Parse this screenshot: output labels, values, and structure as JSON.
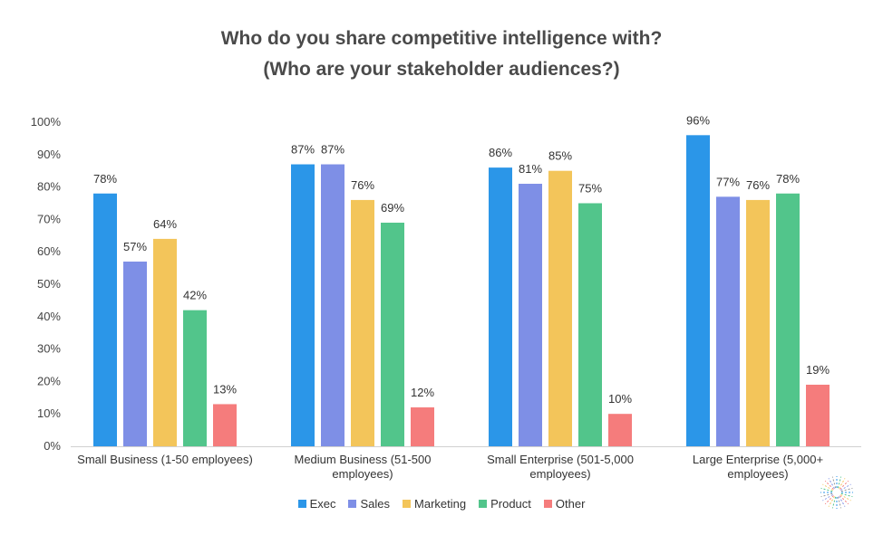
{
  "chart_data": {
    "type": "bar",
    "title": "Who do you share competitive intelligence with?",
    "subtitle": "(Who are your stakeholder audiences?)",
    "categories": [
      [
        "Small Business (1-50 employees)"
      ],
      [
        "Medium Business (51-500",
        "employees)"
      ],
      [
        "Small Enterprise (501-5,000",
        "employees)"
      ],
      [
        "Large Enterprise (5,000+",
        "employees)"
      ]
    ],
    "series": [
      {
        "name": "Exec",
        "color": "#2b96e8",
        "values": [
          78,
          87,
          86,
          96
        ]
      },
      {
        "name": "Sales",
        "color": "#7e8fe6",
        "values": [
          57,
          87,
          81,
          77
        ]
      },
      {
        "name": "Marketing",
        "color": "#f3c55a",
        "values": [
          64,
          76,
          85,
          76
        ]
      },
      {
        "name": "Product",
        "color": "#52c58b",
        "values": [
          42,
          69,
          75,
          78
        ]
      },
      {
        "name": "Other",
        "color": "#f57c7c",
        "values": [
          13,
          12,
          10,
          19
        ]
      }
    ],
    "data_labels": [
      [
        "78%",
        "57%",
        "64%",
        "42%",
        "13%"
      ],
      [
        "87%",
        "87%",
        "76%",
        "69%",
        "12%"
      ],
      [
        "86%",
        "81%",
        "85%",
        "75%",
        "10%"
      ],
      [
        "96%",
        "77%",
        "76%",
        "78%",
        "19%"
      ]
    ],
    "yticks": [
      "0%",
      "10%",
      "20%",
      "30%",
      "40%",
      "50%",
      "60%",
      "70%",
      "80%",
      "90%",
      "100%"
    ],
    "ylim": [
      0,
      100
    ],
    "xlabel": "",
    "ylabel": "",
    "grid": false,
    "legend_position": "bottom"
  }
}
